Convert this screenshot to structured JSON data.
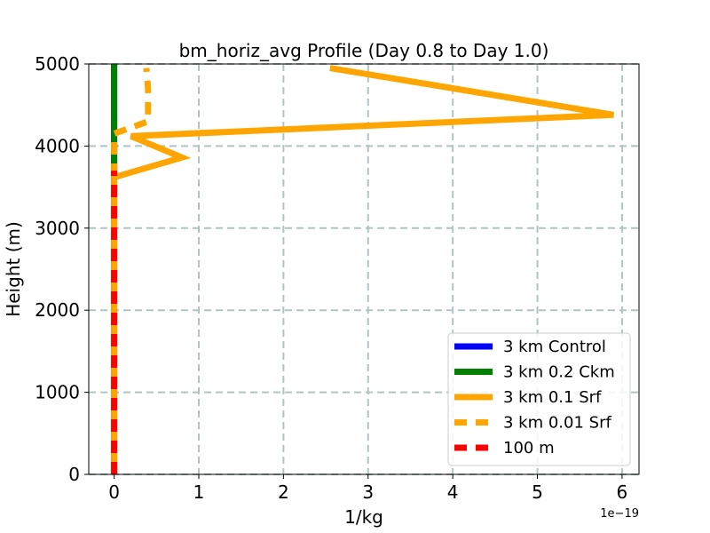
{
  "chart_data": {
    "type": "line",
    "title": "bm_horiz_avg Profile (Day 0.8 to Day 1.0)",
    "xlabel": "1/kg",
    "ylabel": "Height (m)",
    "x_offset_label": "1e−19",
    "xlim": [
      -0.3,
      6.2
    ],
    "ylim": [
      0,
      5000
    ],
    "xticks": [
      0,
      1,
      2,
      3,
      4,
      5,
      6
    ],
    "xtick_labels": [
      "0",
      "1",
      "2",
      "3",
      "4",
      "5",
      "6"
    ],
    "yticks": [
      0,
      1000,
      2000,
      3000,
      4000,
      5000
    ],
    "ytick_labels": [
      "0",
      "1000",
      "2000",
      "3000",
      "4000",
      "5000"
    ],
    "grid": true,
    "legend_position": "lower-right",
    "series": [
      {
        "name": "3 km Control",
        "color": "#0000ff",
        "style": "solid",
        "x": [
          0,
          0,
          0
        ],
        "y": [
          0,
          2500,
          5000
        ]
      },
      {
        "name": "3 km 0.2 Ckm",
        "color": "#008000",
        "style": "solid",
        "x": [
          0,
          0,
          0
        ],
        "y": [
          3700,
          4300,
          5000
        ]
      },
      {
        "name": "3 km 0.1 Srf",
        "color": "#ffa500",
        "style": "solid",
        "x": [
          0,
          0,
          0,
          0.8,
          0.2,
          5.9,
          2.55
        ],
        "y": [
          0,
          3000,
          3620,
          3860,
          4120,
          4380,
          4950
        ]
      },
      {
        "name": "3 km 0.01 Srf",
        "color": "#ffa500",
        "style": "dashed",
        "x": [
          0,
          0,
          0,
          0.4,
          0.4,
          0.38
        ],
        "y": [
          0,
          3800,
          4150,
          4300,
          4700,
          4950
        ]
      },
      {
        "name": "100 m",
        "color": "#ff0000",
        "style": "dashed",
        "x": [
          0,
          0
        ],
        "y": [
          0,
          3700
        ]
      }
    ]
  }
}
